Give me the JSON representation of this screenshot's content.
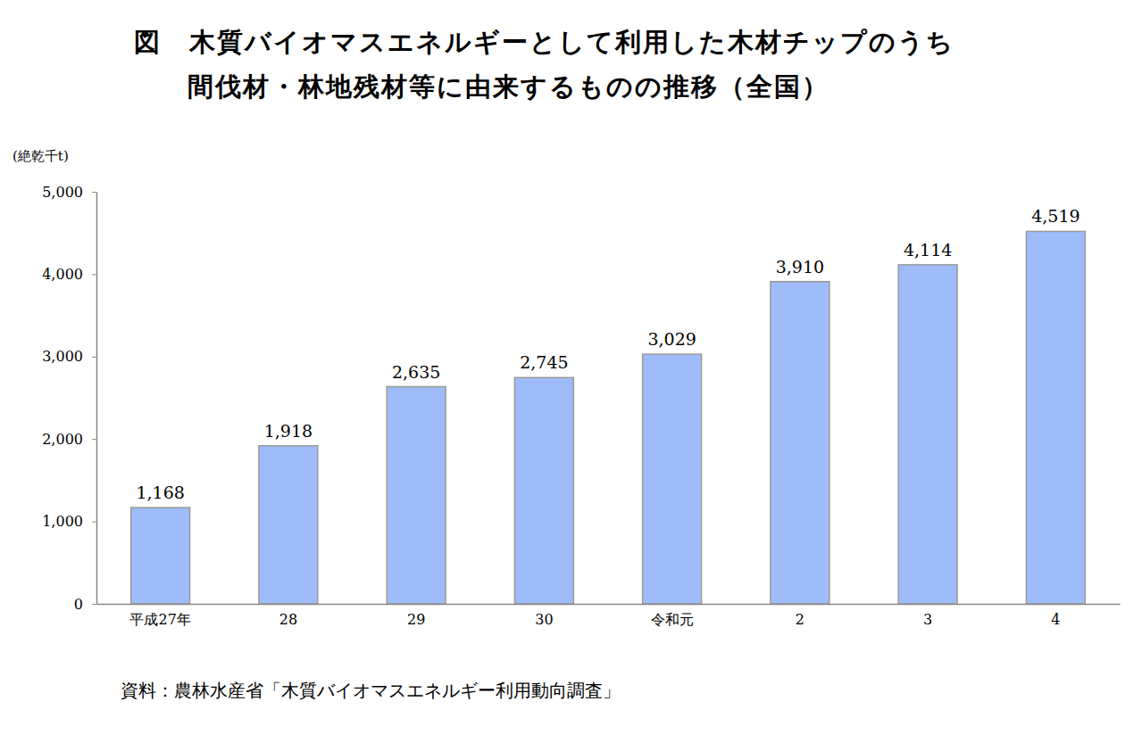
{
  "chart_data": {
    "type": "bar",
    "title": [
      "図　木質バイオマスエネルギーとして利用した木材チップのうち",
      "間伐材・林地残材等に由来するものの推移（全国）"
    ],
    "y_label": "(絶乾千t)",
    "source": "資料：農林水産省「木質バイオマスエネルギー利用動向調査」",
    "categories": [
      "平成27年",
      "28",
      "29",
      "30",
      "令和元",
      "2",
      "3",
      "4"
    ],
    "values": [
      1168,
      1918,
      2635,
      2745,
      3029,
      3910,
      4114,
      4519
    ],
    "value_labels": [
      "1,168",
      "1,918",
      "2,635",
      "2,745",
      "3,029",
      "3,910",
      "4,114",
      "4,519"
    ],
    "color": "#9dbcf9",
    "ylim": [
      0,
      5000
    ],
    "yticks": [
      0,
      {
        "value": 1000,
        "label": "1,000"
      },
      {
        "value": 2000,
        "label": "2,000"
      },
      {
        "value": 3000,
        "label": "3,000"
      },
      {
        "value": 4000,
        "label": "4,000"
      },
      {
        "value": 5000,
        "label": "5,000"
      }
    ],
    "grid": false,
    "data_labels": true
  }
}
